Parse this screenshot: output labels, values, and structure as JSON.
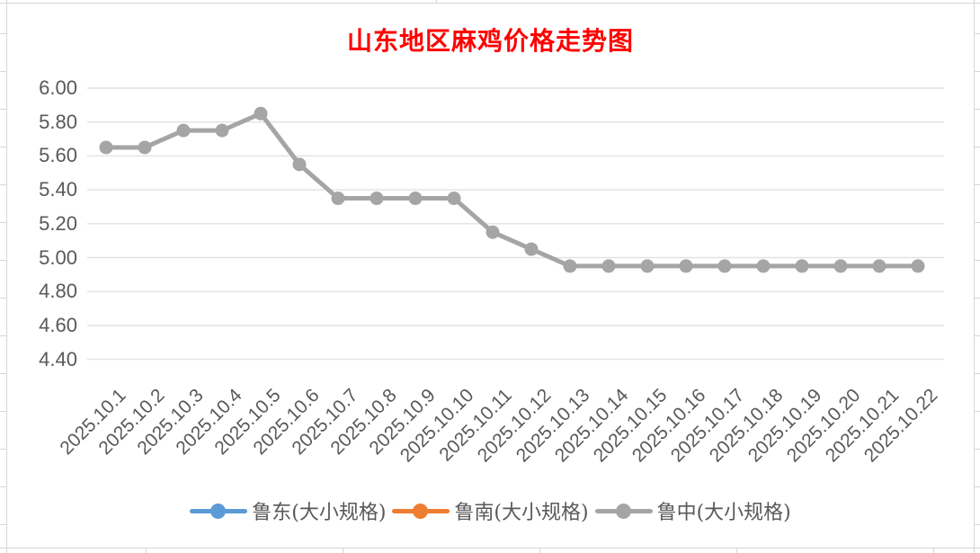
{
  "chart_data": {
    "type": "line",
    "title": "山东地区麻鸡价格走势图",
    "title_color": "#FF0000",
    "x_labels": [
      "2025.10.1",
      "2025.10.2",
      "2025.10.3",
      "2025.10.4",
      "2025.10.5",
      "2025.10.6",
      "2025.10.7",
      "2025.10.8",
      "2025.10.9",
      "2025.10.10",
      "2025.10.11",
      "2025.10.12",
      "2025.10.13",
      "2025.10.14",
      "2025.10.15",
      "2025.10.16",
      "2025.10.17",
      "2025.10.18",
      "2025.10.19",
      "2025.10.20",
      "2025.10.21",
      "2025.10.22"
    ],
    "y_tick_labels": [
      "6.00",
      "5.80",
      "5.60",
      "5.40",
      "5.20",
      "5.00",
      "4.80",
      "4.60",
      "4.40"
    ],
    "ylim": [
      4.4,
      6.0
    ],
    "ytick_step": 0.2,
    "grid": true,
    "legend_position": "bottom",
    "axis_text_color": "#595959",
    "gridline_color": "#e2e2e2",
    "series": [
      {
        "name": "鲁东(大小规格)",
        "color": "#5B9BD5",
        "values": []
      },
      {
        "name": "鲁南(大小规格)",
        "color": "#ED7D31",
        "values": []
      },
      {
        "name": "鲁中(大小规格)",
        "color": "#A5A5A5",
        "values": [
          5.65,
          5.65,
          5.75,
          5.75,
          5.85,
          5.55,
          5.35,
          5.35,
          5.35,
          5.35,
          5.15,
          5.05,
          4.95,
          4.95,
          4.95,
          4.95,
          4.95,
          4.95,
          4.95,
          4.95,
          4.95,
          4.95
        ]
      }
    ]
  }
}
